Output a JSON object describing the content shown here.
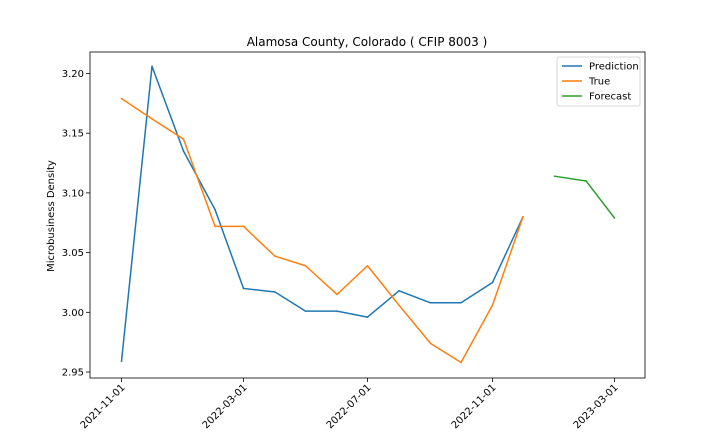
{
  "chart_data": {
    "type": "line",
    "title": "Alamosa County, Colorado ( CFIP 8003 )",
    "xlabel": "",
    "ylabel": "Microbusiness Density",
    "x_ticks": [
      "2021-11-01",
      "2022-03-01",
      "2022-07-01",
      "2022-11-01",
      "2023-03-01"
    ],
    "y_ticks": [
      "2.95",
      "3.00",
      "3.05",
      "3.10",
      "3.15",
      "3.20"
    ],
    "ylim": [
      2.945,
      3.218
    ],
    "xlim": [
      "2021-10-01",
      "2023-03-31"
    ],
    "grid": false,
    "legend_position": "top-right",
    "series": [
      {
        "name": "Prediction",
        "color": "#1f77b4",
        "points": [
          [
            "2021-11-01",
            2.959
          ],
          [
            "2021-12-01",
            3.206
          ],
          [
            "2022-01-01",
            3.135
          ],
          [
            "2022-02-01",
            3.086
          ],
          [
            "2022-03-01",
            3.02
          ],
          [
            "2022-04-01",
            3.017
          ],
          [
            "2022-05-01",
            3.001
          ],
          [
            "2022-06-01",
            3.001
          ],
          [
            "2022-07-01",
            2.996
          ],
          [
            "2022-08-01",
            3.018
          ],
          [
            "2022-09-01",
            3.008
          ],
          [
            "2022-10-01",
            3.008
          ],
          [
            "2022-11-01",
            3.025
          ],
          [
            "2022-12-01",
            3.08
          ]
        ]
      },
      {
        "name": "True",
        "color": "#ff7f0e",
        "points": [
          [
            "2021-11-01",
            3.179
          ],
          [
            "2021-12-01",
            3.162
          ],
          [
            "2022-01-01",
            3.145
          ],
          [
            "2022-02-01",
            3.072
          ],
          [
            "2022-03-01",
            3.072
          ],
          [
            "2022-04-01",
            3.047
          ],
          [
            "2022-05-01",
            3.039
          ],
          [
            "2022-06-01",
            3.015
          ],
          [
            "2022-07-01",
            3.039
          ],
          [
            "2022-08-01",
            3.006
          ],
          [
            "2022-09-01",
            2.974
          ],
          [
            "2022-10-01",
            2.958
          ],
          [
            "2022-11-01",
            3.006
          ],
          [
            "2022-12-01",
            3.08
          ]
        ]
      },
      {
        "name": "Forecast",
        "color": "#2ca02c",
        "points": [
          [
            "2023-01-01",
            3.114
          ],
          [
            "2023-02-01",
            3.11
          ],
          [
            "2023-03-01",
            3.079
          ]
        ]
      }
    ]
  }
}
